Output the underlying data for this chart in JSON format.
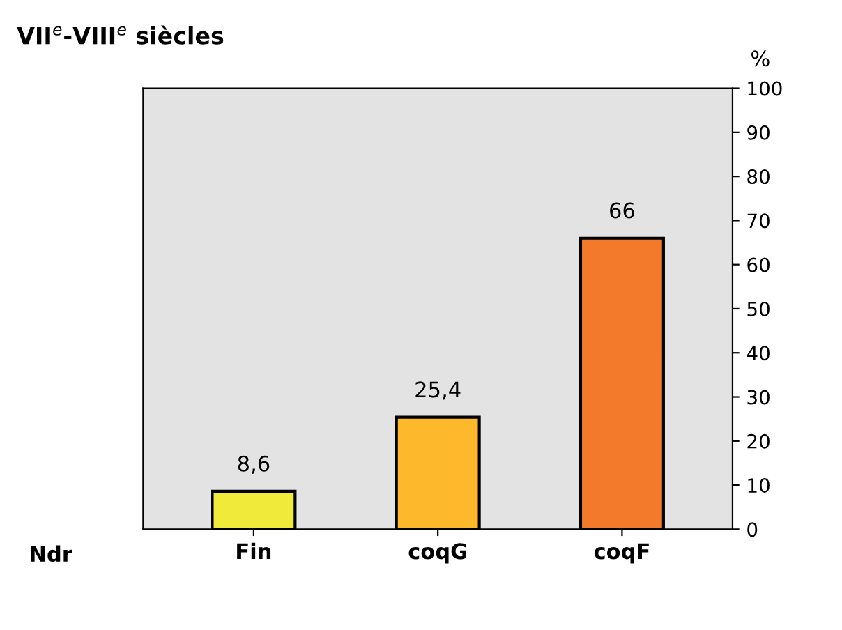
{
  "chart_data": {
    "type": "bar",
    "title": "VII$^{e}$-VIII$^{e}$ siècles",
    "ylabel": "%",
    "categories": [
      "Fin",
      "coqG",
      "coqF"
    ],
    "series": [
      {
        "name": "Ndr",
        "values": [
          8.6,
          25.4,
          66
        ],
        "value_labels": [
          "8,6",
          "25,4",
          "66"
        ],
        "colors": [
          "#f0ea3a",
          "#fdb82b",
          "#f47a2b"
        ]
      }
    ],
    "ylim": [
      0,
      100
    ],
    "yticks": [
      0,
      10,
      20,
      30,
      40,
      50,
      60,
      70,
      80,
      90,
      100
    ],
    "grid": false
  }
}
